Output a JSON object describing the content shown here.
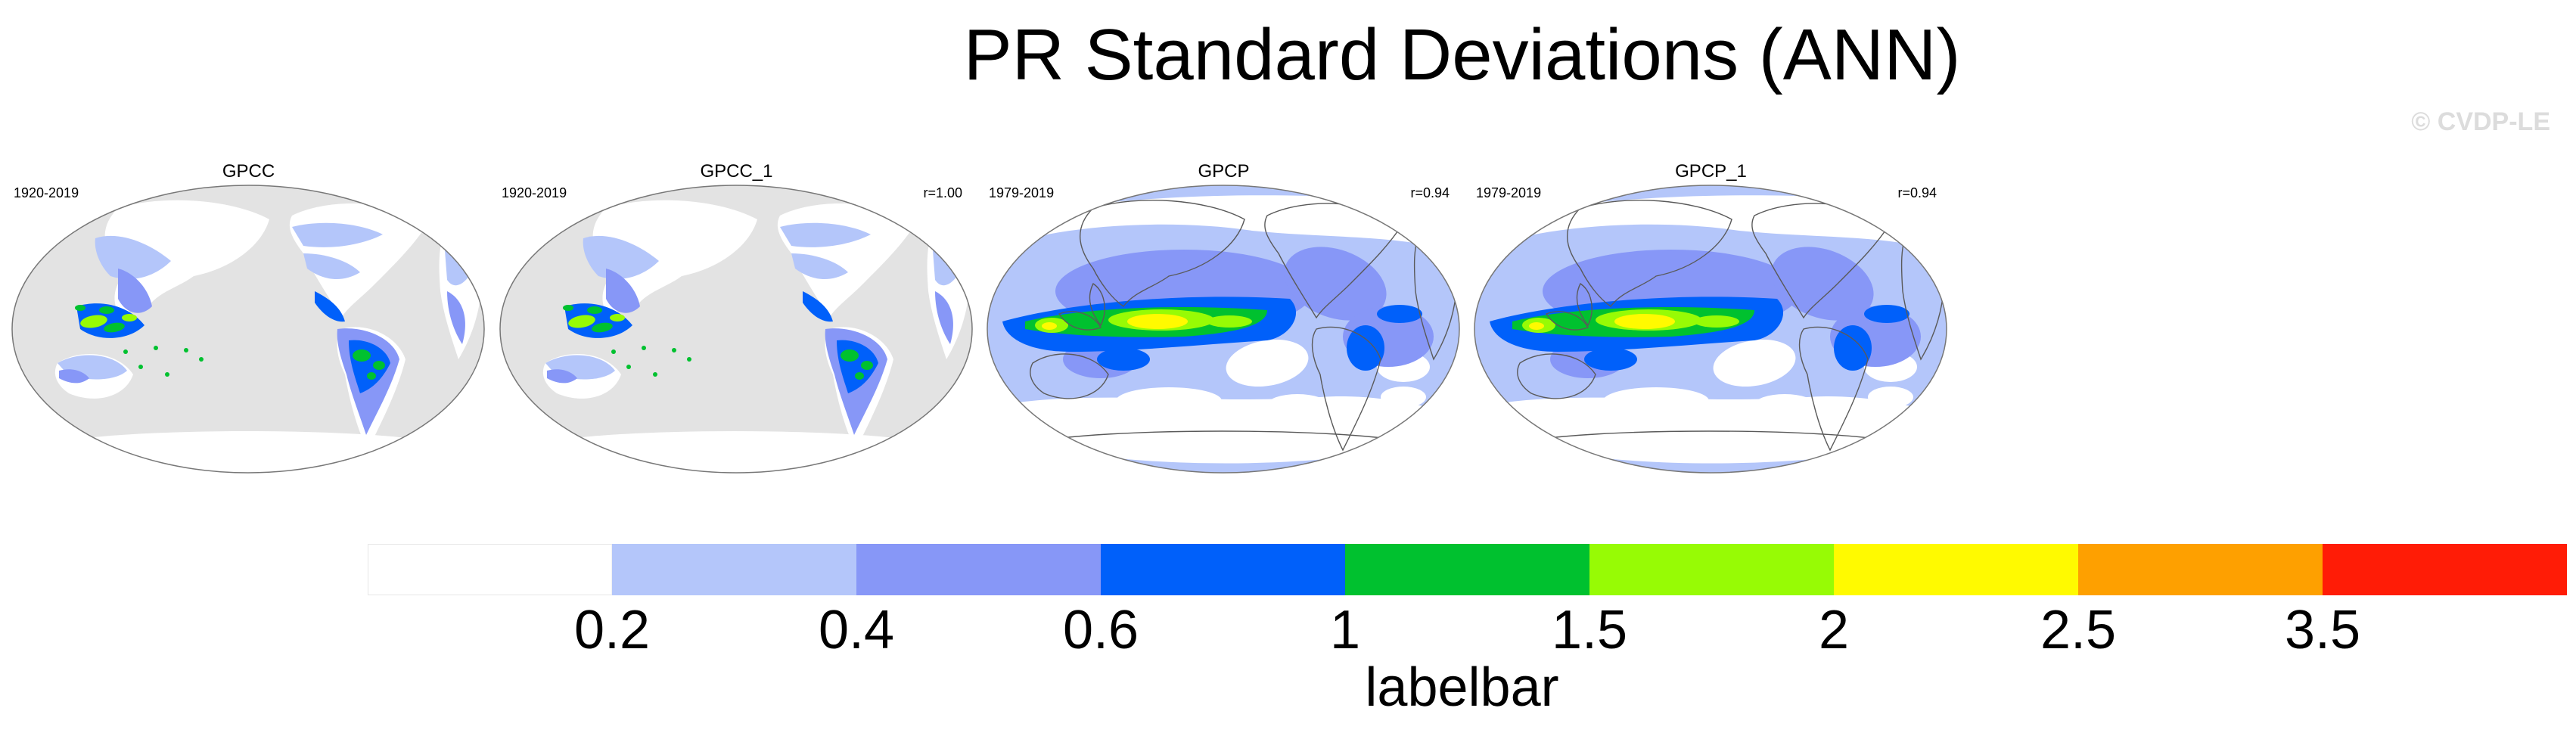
{
  "title": "PR Standard Deviations (ANN)",
  "watermark": "© CVDP-LE",
  "panels": [
    {
      "name": "GPCC",
      "period": "1920-2019",
      "corr": "",
      "dataset": "gpcc"
    },
    {
      "name": "GPCC_1",
      "period": "1920-2019",
      "corr": "r=1.00",
      "dataset": "gpcc"
    },
    {
      "name": "GPCP",
      "period": "1979-2019",
      "corr": "r=0.94",
      "dataset": "gpcp"
    },
    {
      "name": "GPCP_1",
      "period": "1979-2019",
      "corr": "r=0.94",
      "dataset": "gpcp"
    }
  ],
  "labelbar": {
    "title": "labelbar",
    "ticks": [
      "0.2",
      "0.4",
      "0.6",
      "1",
      "1.5",
      "2",
      "2.5",
      "3.5"
    ],
    "colors": [
      "#ffffff",
      "#b4c6fa",
      "#8797f7",
      "#0060fa",
      "#00c12f",
      "#97fb05",
      "#fffa00",
      "#fea000",
      "#ff1c06"
    ]
  },
  "colors": {
    "land_missing": "#e3e3e3",
    "coastline": "#5a5a5a"
  }
}
